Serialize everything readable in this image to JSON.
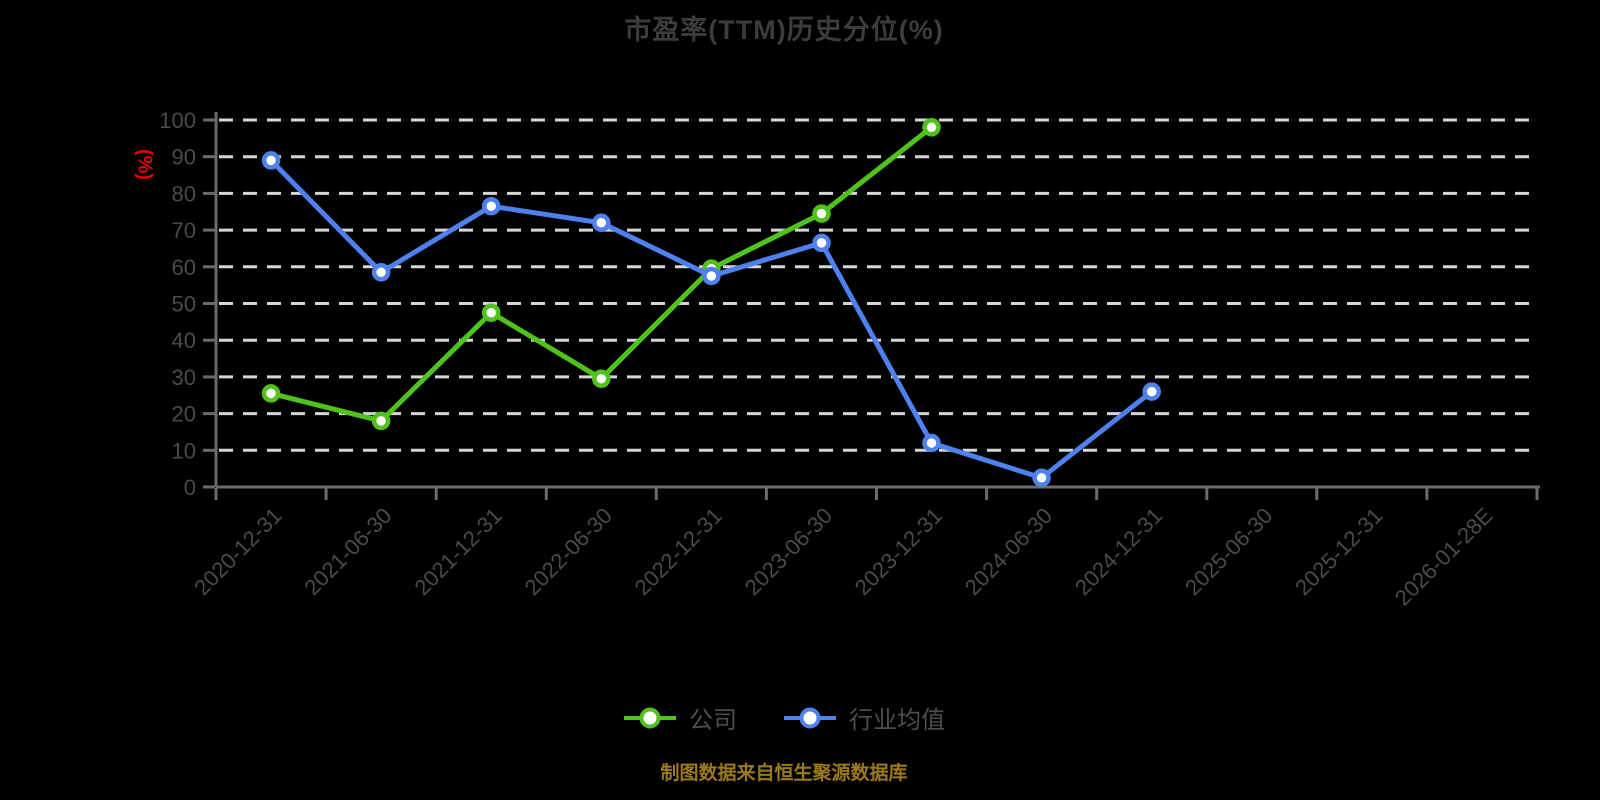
{
  "footer": {
    "source_note": "制图数据来自恒生聚源数据库"
  },
  "chart_data": {
    "type": "line",
    "title": "市盈率(TTM)历史分位(%)",
    "ylabel": "(%)",
    "xlabel": "",
    "ylim": [
      0,
      100
    ],
    "ytick_step": 10,
    "grid": "horizontal-dashed",
    "legend_position": "bottom-center",
    "categories": [
      "2020-12-31",
      "2021-06-30",
      "2021-12-31",
      "2022-06-30",
      "2022-12-31",
      "2023-06-30",
      "2023-12-31",
      "2024-06-30",
      "2024-12-31",
      "2025-06-30",
      "2025-12-31",
      "2026-01-28E"
    ],
    "series": [
      {
        "name": "公司",
        "color": "#4FC31B",
        "marker": "circle-white-fill",
        "values": [
          25.5,
          18,
          47.5,
          29.5,
          59.5,
          74.5,
          98,
          null,
          null,
          null,
          null,
          null
        ]
      },
      {
        "name": "行业均值",
        "color": "#4E80EE",
        "marker": "circle-white-fill",
        "values": [
          89,
          58.5,
          76.5,
          72,
          57.5,
          66.5,
          12,
          2.5,
          26,
          null,
          null,
          null
        ]
      }
    ],
    "colors": {
      "background": "#000000",
      "grid": "#D6D6D6",
      "axis": "#6B6B6B",
      "axis_text": "#4A4A4A",
      "title_text": "#3C3C3C",
      "unit_label_red": "#E60000",
      "legend_text": "#4D4D4D",
      "source_text": "#9C7A1B"
    }
  }
}
